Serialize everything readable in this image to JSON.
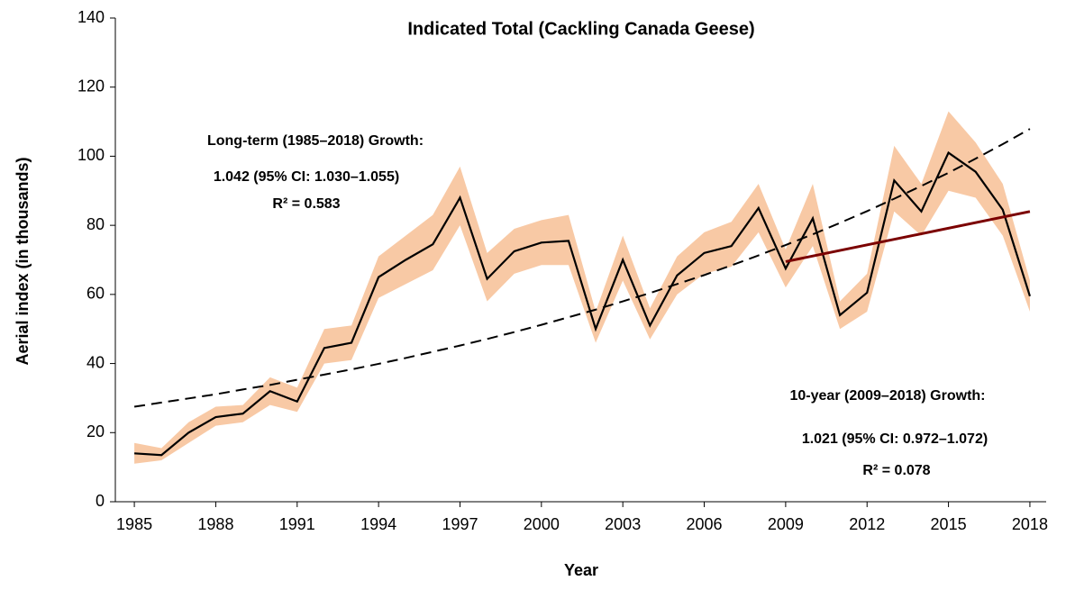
{
  "chart_data": {
    "type": "line",
    "title": "Indicated Total  (Cackling Canada Geese)",
    "xlabel": "Year",
    "ylabel": "Aerial index (in thousands)",
    "x": [
      1985,
      1986,
      1987,
      1988,
      1989,
      1990,
      1991,
      1992,
      1993,
      1994,
      1995,
      1996,
      1997,
      1998,
      1999,
      2000,
      2001,
      2002,
      2003,
      2004,
      2005,
      2006,
      2007,
      2008,
      2009,
      2010,
      2011,
      2012,
      2013,
      2014,
      2015,
      2016,
      2017,
      2018
    ],
    "xlim": [
      1984.3,
      2018.6
    ],
    "xticks": [
      1985,
      1988,
      1991,
      1994,
      1997,
      2000,
      2003,
      2006,
      2009,
      2012,
      2015,
      2018
    ],
    "ylim": [
      0,
      140
    ],
    "yticks": [
      0,
      20,
      40,
      60,
      80,
      100,
      120,
      140
    ],
    "series": [
      {
        "color": "#000000",
        "band_color": "#f8c9a5",
        "values": [
          14,
          13.5,
          20,
          24.5,
          25.5,
          32,
          29,
          44.5,
          46,
          65,
          70,
          74.5,
          88,
          64.5,
          72.5,
          75,
          75.5,
          50,
          70,
          51,
          65.5,
          72,
          74,
          85,
          67.5,
          82,
          54,
          60.5,
          93,
          84,
          101,
          95.5,
          84.5,
          59.5
        ],
        "lower": [
          11,
          12,
          17,
          22,
          23,
          28,
          26,
          40,
          41,
          59,
          63,
          67,
          80,
          58,
          66,
          68.5,
          68.5,
          46,
          64,
          47,
          60,
          66,
          68,
          78,
          62,
          74,
          50,
          55,
          84,
          77,
          90,
          88,
          77,
          55
        ],
        "upper": [
          17,
          15.5,
          23,
          27.5,
          28,
          36,
          33,
          50,
          51,
          71,
          77,
          83,
          97,
          72,
          79,
          81.5,
          83,
          55,
          77,
          56,
          71,
          78,
          81,
          92,
          73,
          92,
          58,
          66,
          103,
          92,
          113,
          104,
          92,
          64
        ]
      },
      {
        "color": "#000000",
        "dash": true,
        "values": [
          27.5,
          28.7,
          29.9,
          31.1,
          32.5,
          33.8,
          35.3,
          36.8,
          38.3,
          39.9,
          41.6,
          43.4,
          45.2,
          47.1,
          49.1,
          51.2,
          53.4,
          55.6,
          58.0,
          60.4,
          63.0,
          65.6,
          68.4,
          71.3,
          74.3,
          77.4,
          80.7,
          84.1,
          87.7,
          91.4,
          95.2,
          99.3,
          103.5,
          107.9
        ]
      },
      {
        "color": "#7b0000",
        "x": [
          2009,
          2018
        ],
        "values": [
          69.5,
          84
        ]
      }
    ],
    "annotations": [
      [
        "Long-term (1985–2018) Growth:",
        "1.042  (95% CI: 1.030–1.055)",
        "R² = 0.583"
      ],
      [
        "10-year (2009–2018) Growth:",
        "1.021  (95% CI: 0.972–1.072)",
        "R² = 0.078"
      ]
    ]
  }
}
